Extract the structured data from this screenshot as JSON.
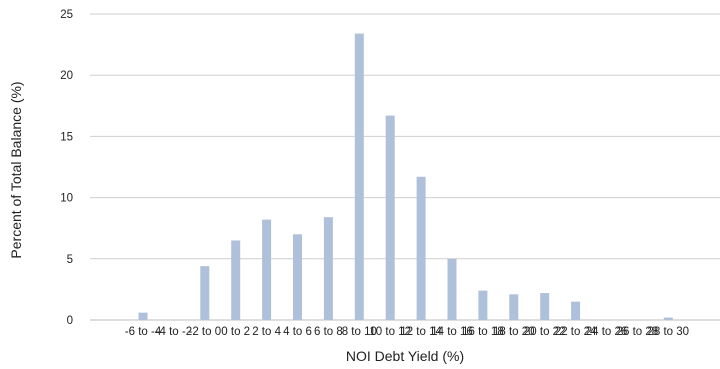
{
  "chart_data": {
    "type": "bar",
    "xlabel": "NOI Debt Yield (%)",
    "ylabel": "Percent of Total Balance (%)",
    "ylim": [
      0,
      25
    ],
    "yticks": [
      0,
      5,
      10,
      15,
      20,
      25
    ],
    "grid": true,
    "bar_color": "#aec0da",
    "categories": [
      "-6 to -4",
      "-4 to -2",
      "-2 to 0",
      "0 to 2",
      "2 to 4",
      "4 to 6",
      "6 to 8",
      "8 to 10",
      "10 to 12",
      "12 to 14",
      "14 to 16",
      "16 to 18",
      "18 to 20",
      "20 to 22",
      "22 to 24",
      "24 to 26",
      "26 to 28",
      "28 to 30"
    ],
    "values": [
      0.6,
      0.0,
      4.4,
      6.5,
      8.2,
      7.0,
      8.4,
      23.4,
      16.7,
      11.7,
      5.0,
      2.4,
      2.1,
      2.2,
      1.5,
      0.0,
      0.0,
      0.2
    ]
  }
}
